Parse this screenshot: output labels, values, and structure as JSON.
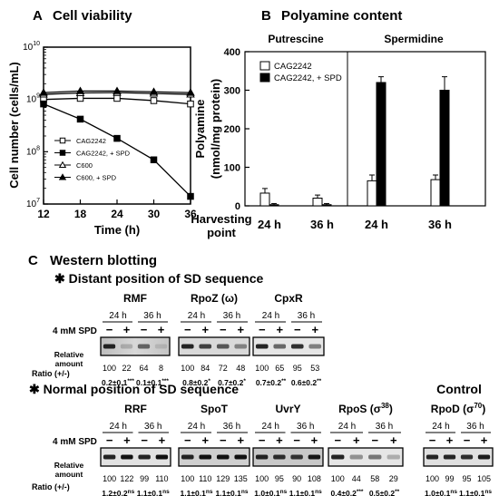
{
  "panelA": {
    "letter": "A",
    "title": "Cell viability",
    "ylabel": "Cell number (cells/mL)",
    "xlabel": "Time (h)",
    "yticks": [
      {
        "base": "10",
        "exp": "7",
        "v": 7
      },
      {
        "base": "10",
        "exp": "8",
        "v": 8
      },
      {
        "base": "10",
        "exp": "9",
        "v": 9
      },
      {
        "base": "10",
        "exp": "10",
        "v": 10
      }
    ],
    "xticks": [
      "12",
      "18",
      "24",
      "30",
      "36"
    ],
    "legend": [
      "CAG2242",
      "CAG2242, + SPD",
      "C600",
      "C600, + SPD"
    ]
  },
  "panelB": {
    "letter": "B",
    "title": "Polyamine content",
    "ylabel_line1": "Polyamine",
    "ylabel_line2": "(nmol/mg protein)",
    "group_labels": [
      "Putrescine",
      "Spermidine"
    ],
    "yticks": [
      "0",
      "100",
      "200",
      "300",
      "400"
    ],
    "xticks": [
      "24 h",
      "36 h",
      "24 h",
      "36 h"
    ],
    "harvest_line1": "Harvesting",
    "harvest_line2": "point",
    "legend": [
      "CAG2242",
      "CAG2242, + SPD"
    ]
  },
  "chart_data": [
    {
      "type": "line",
      "title": "Cell viability",
      "xlabel": "Time (h)",
      "ylabel": "Cell number (cells/mL)",
      "yscale": "log",
      "ylim": [
        10000000,
        10000000000
      ],
      "xlim": [
        12,
        36
      ],
      "x": [
        12,
        18,
        24,
        30,
        36
      ],
      "series": [
        {
          "name": "CAG2242",
          "marker": "open-square",
          "values": [
            1000000000,
            1050000000,
            1050000000,
            950000000,
            820000000
          ]
        },
        {
          "name": "CAG2242, + SPD",
          "marker": "filled-square",
          "values": [
            820000000,
            420000000,
            180000000,
            70000000,
            14000000
          ]
        },
        {
          "name": "C600",
          "marker": "open-triangle",
          "values": [
            1250000000,
            1330000000,
            1350000000,
            1300000000,
            1250000000
          ]
        },
        {
          "name": "C600, + SPD",
          "marker": "filled-triangle",
          "values": [
            1350000000,
            1450000000,
            1450000000,
            1400000000,
            1350000000
          ]
        }
      ]
    },
    {
      "type": "bar",
      "title": "Polyamine content",
      "ylabel": "Polyamine (nmol/mg protein)",
      "ylim": [
        0,
        400
      ],
      "categories": [
        "Putrescine 24 h",
        "Putrescine 36 h",
        "Spermidine 24 h",
        "Spermidine 36 h"
      ],
      "series": [
        {
          "name": "CAG2242",
          "values": [
            33,
            20,
            65,
            68
          ],
          "errors": [
            12,
            8,
            15,
            12
          ]
        },
        {
          "name": "CAG2242, + SPD",
          "values": [
            3,
            3,
            320,
            300
          ],
          "errors": [
            3,
            3,
            15,
            35
          ]
        }
      ]
    }
  ],
  "panelC": {
    "letter": "C",
    "title": "Western blotting",
    "distant_heading": "✱ Distant position of SD sequence",
    "normal_heading": "✱ Normal position of SD sequence",
    "control_heading": "Control",
    "spd_label": "4 mM SPD",
    "time_labels": [
      "24 h",
      "36 h"
    ],
    "minus": "−",
    "plus": "+",
    "relative_line1": "Relative",
    "relative_line2": "amount",
    "ratio_label": "Ratio (+/-)",
    "distant_blots": [
      {
        "name": "RMF",
        "amounts": [
          "100",
          "22",
          "64",
          "8"
        ],
        "ratios": [
          {
            "v": "0.2±0.1",
            "s": "***"
          },
          {
            "v": "0.1±0.1",
            "s": "***"
          }
        ]
      },
      {
        "name": "RpoZ (ω)",
        "amounts": [
          "100",
          "84",
          "72",
          "48"
        ],
        "ratios": [
          {
            "v": "0.8±0.2",
            "s": "*"
          },
          {
            "v": "0.7±0.2",
            "s": "*"
          }
        ]
      },
      {
        "name": "CpxR",
        "amounts": [
          "100",
          "65",
          "95",
          "53"
        ],
        "ratios": [
          {
            "v": "0.7±0.2",
            "s": "**"
          },
          {
            "v": "0.6±0.2",
            "s": "**"
          }
        ]
      }
    ],
    "normal_blots": [
      {
        "name": "RRF",
        "amounts": [
          "100",
          "122",
          "99",
          "110"
        ],
        "ratios": [
          {
            "v": "1.2±0.2",
            "s": "ns"
          },
          {
            "v": "1.1±0.1",
            "s": "ns"
          }
        ]
      },
      {
        "name": "SpoT",
        "amounts": [
          "100",
          "110",
          "129",
          "135"
        ],
        "ratios": [
          {
            "v": "1.1±0.1",
            "s": "ns"
          },
          {
            "v": "1.1±0.1",
            "s": "ns"
          }
        ]
      },
      {
        "name": "UvrY",
        "amounts": [
          "100",
          "95",
          "90",
          "108"
        ],
        "ratios": [
          {
            "v": "1.0±0.1",
            "s": "ns"
          },
          {
            "v": "1.1±0.1",
            "s": "ns"
          }
        ]
      },
      {
        "name": "RpoS (σ",
        "sup": "38",
        "close": ")",
        "amounts": [
          "100",
          "44",
          "58",
          "29"
        ],
        "ratios": [
          {
            "v": "0.4±0.2",
            "s": "***"
          },
          {
            "v": "0.5±0.2",
            "s": "**"
          }
        ]
      },
      {
        "name": "RpoD (σ",
        "sup": "70",
        "close": ")",
        "amounts": [
          "100",
          "99",
          "95",
          "105"
        ],
        "ratios": [
          {
            "v": "1.0±0.1",
            "s": "ns"
          },
          {
            "v": "1.1±0.1",
            "s": "ns"
          }
        ]
      }
    ]
  }
}
